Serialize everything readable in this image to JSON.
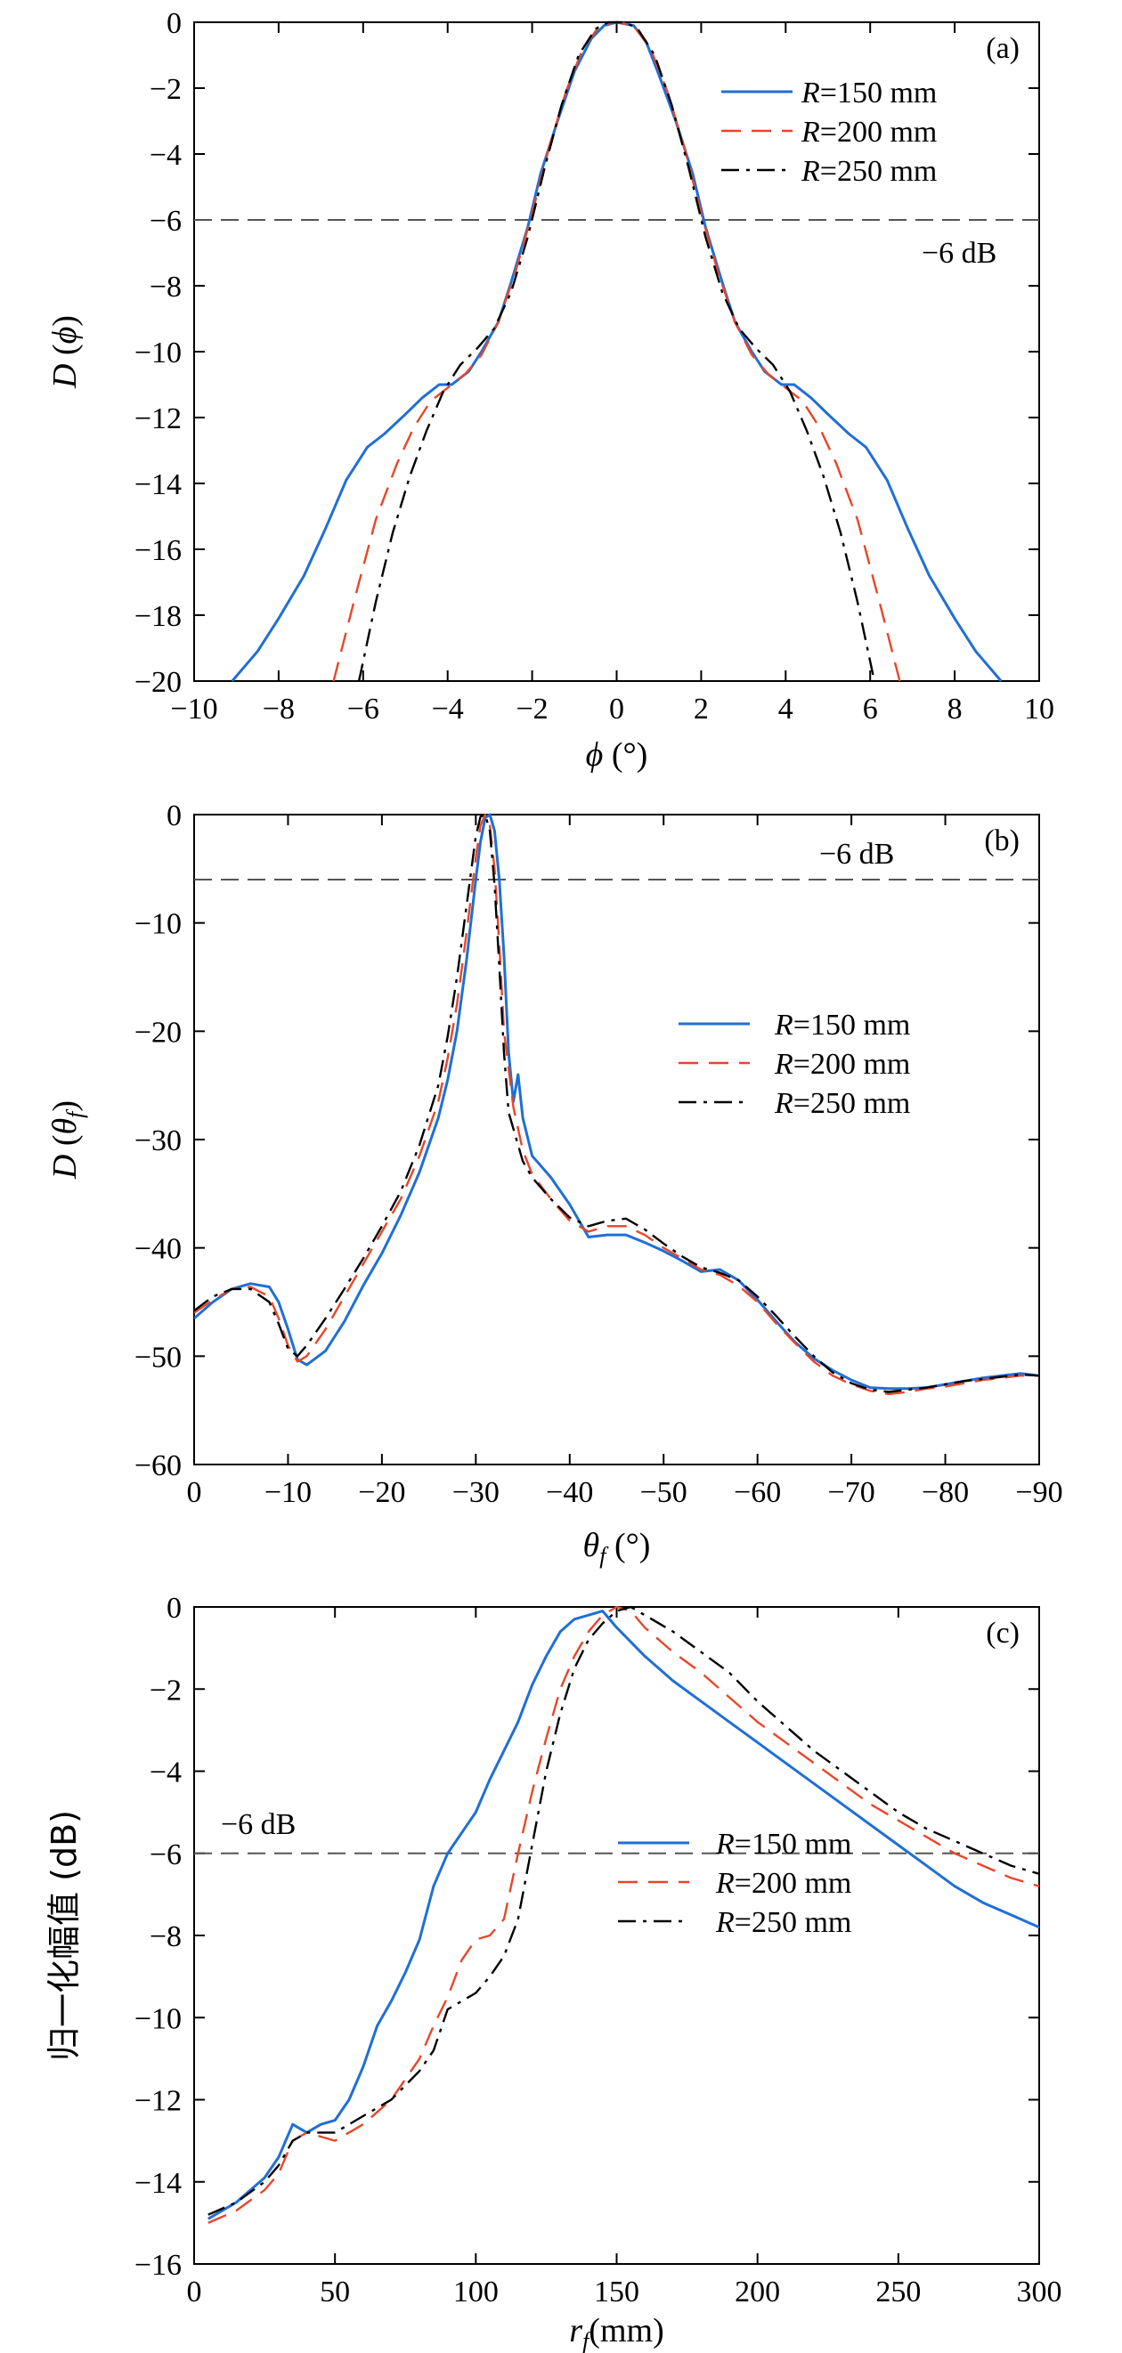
{
  "colors": {
    "r150": "#1f6fd6",
    "r200": "#e8462a",
    "r250": "#000000",
    "ref": "#555555"
  },
  "chart_data": [
    {
      "type": "line",
      "panel_label": "(a)",
      "xlabel": "ϕ (°)",
      "ylabel": "D (ϕ)",
      "xlim": [
        -10,
        10
      ],
      "ylim": [
        -20,
        0
      ],
      "x_reversed": false,
      "xticks": [
        -10,
        -8,
        -6,
        -4,
        -2,
        0,
        2,
        4,
        6,
        8,
        10
      ],
      "xtick_labels": [
        "−10",
        "−8",
        "−6",
        "−4",
        "−2",
        "0",
        "2",
        "4",
        "6",
        "8",
        "10"
      ],
      "yticks": [
        0,
        -2,
        -4,
        -6,
        -8,
        -10,
        -12,
        -14,
        -16,
        -18,
        -20
      ],
      "ytick_labels": [
        "0",
        "−2",
        "−4",
        "−6",
        "−8",
        "−10",
        "−12",
        "−14",
        "−16",
        "−18",
        "−20"
      ],
      "grid": false,
      "legend": "top-right",
      "reference_line": {
        "y": -6,
        "label": "−6 dB"
      },
      "series": [
        {
          "name": "R=150 mm",
          "name_italic": "R",
          "name_rest": "=150 mm",
          "style": "solid",
          "color_key": "r150",
          "x": [
            -9.1,
            -8.5,
            -8.0,
            -7.4,
            -6.9,
            -6.4,
            -5.9,
            -5.5,
            -5.0,
            -4.6,
            -4.2,
            -3.9,
            -3.5,
            -3.2,
            -2.8,
            -2.5,
            -2.1,
            -1.8,
            -1.4,
            -1.0,
            -0.6,
            -0.3,
            0,
            0.4,
            0.7,
            1.0,
            1.4,
            1.8,
            2.1,
            2.5,
            2.8,
            3.2,
            3.5,
            3.9,
            4.2,
            4.6,
            5.0,
            5.5,
            5.9,
            6.4,
            6.9,
            7.4,
            8.0,
            8.5,
            9.1
          ],
          "y": [
            -20.0,
            -19.1,
            -18.1,
            -16.8,
            -15.4,
            -13.9,
            -12.9,
            -12.5,
            -11.9,
            -11.4,
            -11.0,
            -11.0,
            -10.6,
            -10.0,
            -9.1,
            -7.9,
            -6.2,
            -4.6,
            -3.0,
            -1.5,
            -0.5,
            -0.1,
            0,
            -0.1,
            -0.6,
            -1.6,
            -3.0,
            -4.6,
            -6.2,
            -7.9,
            -9.1,
            -10.0,
            -10.6,
            -11.0,
            -11.0,
            -11.4,
            -11.9,
            -12.5,
            -12.9,
            -13.9,
            -15.4,
            -16.8,
            -18.1,
            -19.1,
            -20.0
          ]
        },
        {
          "name": "R=200 mm",
          "name_italic": "R",
          "name_rest": "=200 mm",
          "style": "dashed",
          "color_key": "r200",
          "x": [
            -6.7,
            -6.2,
            -5.7,
            -5.2,
            -4.8,
            -4.4,
            -4.0,
            -3.6,
            -3.2,
            -2.8,
            -2.4,
            -2.0,
            -1.6,
            -1.2,
            -0.8,
            -0.4,
            0,
            0.4,
            0.8,
            1.2,
            1.6,
            2.0,
            2.4,
            2.8,
            3.2,
            3.6,
            4.0,
            4.4,
            4.8,
            5.2,
            5.7,
            6.2,
            6.7
          ],
          "y": [
            -20.0,
            -17.5,
            -15.1,
            -13.4,
            -12.3,
            -11.5,
            -11.1,
            -10.7,
            -10.1,
            -9.1,
            -7.6,
            -5.8,
            -3.8,
            -2.1,
            -0.8,
            -0.1,
            0,
            -0.1,
            -0.8,
            -2.1,
            -3.8,
            -5.8,
            -7.6,
            -9.1,
            -10.1,
            -10.7,
            -11.1,
            -11.5,
            -12.3,
            -13.4,
            -15.1,
            -17.5,
            -20.0
          ]
        },
        {
          "name": "R=250 mm",
          "name_italic": "R",
          "name_rest": "=250 mm",
          "style": "dashdot",
          "color_key": "r250",
          "x": [
            -6.1,
            -5.7,
            -5.3,
            -4.9,
            -4.5,
            -4.1,
            -3.7,
            -3.3,
            -2.9,
            -2.5,
            -2.1,
            -1.7,
            -1.3,
            -0.9,
            -0.5,
            -0.2,
            0,
            0.2,
            0.5,
            0.9,
            1.3,
            1.7,
            2.1,
            2.5,
            2.9,
            3.3,
            3.7,
            4.1,
            4.5,
            4.9,
            5.3,
            5.7,
            6.1
          ],
          "y": [
            -20.0,
            -17.6,
            -15.5,
            -13.8,
            -12.4,
            -11.2,
            -10.4,
            -9.9,
            -9.3,
            -8.2,
            -6.5,
            -4.4,
            -2.5,
            -1.0,
            -0.2,
            0,
            0,
            0,
            -0.2,
            -1.0,
            -2.5,
            -4.4,
            -6.5,
            -8.2,
            -9.3,
            -9.9,
            -10.4,
            -11.2,
            -12.4,
            -13.8,
            -15.5,
            -17.6,
            -20.0
          ]
        }
      ]
    },
    {
      "type": "line",
      "panel_label": "(b)",
      "xlabel": "θf (°)",
      "ylabel": "D (θf)",
      "xlim": [
        0,
        -90
      ],
      "ylim": [
        -60,
        0
      ],
      "x_reversed": true,
      "xticks": [
        0,
        -10,
        -20,
        -30,
        -40,
        -50,
        -60,
        -70,
        -80,
        -90
      ],
      "xtick_labels": [
        "0",
        "−10",
        "−20",
        "−30",
        "−40",
        "−50",
        "−60",
        "−70",
        "−80",
        "−90"
      ],
      "yticks": [
        0,
        -10,
        -20,
        -30,
        -40,
        -50,
        -60
      ],
      "ytick_labels": [
        "0",
        "−10",
        "−20",
        "−30",
        "−40",
        "−50",
        "−60"
      ],
      "grid": false,
      "legend": "center-right",
      "reference_line": {
        "y": -6,
        "label": "−6 dB"
      },
      "series": [
        {
          "name": "R=150 mm",
          "name_italic": "R",
          "name_rest": "=150 mm",
          "style": "solid",
          "color_key": "r150",
          "x": [
            0,
            -2,
            -4,
            -6,
            -8,
            -9,
            -10,
            -11,
            -12,
            -14,
            -16,
            -18,
            -20,
            -22,
            -24,
            -26,
            -27,
            -28,
            -29,
            -30,
            -30.5,
            -31,
            -31.5,
            -32,
            -32.5,
            -33,
            -33.5,
            -34,
            -34.5,
            -35,
            -36,
            -38,
            -40,
            -42,
            -44,
            -46,
            -48,
            -50,
            -52,
            -54,
            -56,
            -58,
            -60,
            -62,
            -64,
            -66,
            -68,
            -70,
            -72,
            -74,
            -76,
            -78,
            -80,
            -82,
            -84,
            -86,
            -88,
            -90
          ],
          "y": [
            -46.5,
            -45.0,
            -43.8,
            -43.3,
            -43.6,
            -45.0,
            -47.5,
            -50.3,
            -50.8,
            -49.5,
            -46.8,
            -43.5,
            -40.5,
            -37.0,
            -33.0,
            -28.0,
            -24.5,
            -20.0,
            -13.5,
            -6.0,
            -2.5,
            -0.3,
            0,
            -1.5,
            -6.0,
            -13.0,
            -22.0,
            -26.5,
            -24.0,
            -28.0,
            -31.5,
            -33.5,
            -36.0,
            -39.0,
            -38.8,
            -38.8,
            -39.5,
            -40.3,
            -41.2,
            -42.2,
            -42.0,
            -43.0,
            -44.8,
            -46.8,
            -48.7,
            -50.2,
            -51.3,
            -52.2,
            -52.9,
            -53.0,
            -53.0,
            -52.9,
            -52.6,
            -52.3,
            -52.0,
            -51.8,
            -51.6,
            -51.8
          ]
        },
        {
          "name": "R=200 mm",
          "name_italic": "R",
          "name_rest": "=200 mm",
          "style": "dashed",
          "color_key": "r200",
          "x": [
            0,
            -2,
            -4,
            -6,
            -8,
            -9,
            -10,
            -11,
            -12,
            -14,
            -16,
            -18,
            -20,
            -22,
            -24,
            -26,
            -27,
            -28,
            -29,
            -30,
            -30.5,
            -31,
            -31.5,
            -32,
            -32.5,
            -33,
            -34,
            -35,
            -36,
            -38,
            -40,
            -42,
            -44,
            -46,
            -48,
            -50,
            -52,
            -54,
            -56,
            -58,
            -60,
            -62,
            -64,
            -66,
            -68,
            -70,
            -72,
            -74,
            -76,
            -78,
            -80,
            -82,
            -84,
            -86,
            -88,
            -90
          ],
          "y": [
            -46.0,
            -44.8,
            -43.8,
            -43.6,
            -44.5,
            -46.5,
            -49.0,
            -50.5,
            -50.0,
            -47.5,
            -44.5,
            -41.5,
            -38.5,
            -35.5,
            -31.5,
            -26.5,
            -22.5,
            -17.5,
            -11.0,
            -4.0,
            -1.0,
            0,
            -1.0,
            -5.0,
            -12.0,
            -20.0,
            -27.0,
            -31.0,
            -33.2,
            -35.5,
            -37.5,
            -38.5,
            -38.0,
            -38.0,
            -38.8,
            -40.0,
            -41.0,
            -42.0,
            -42.5,
            -43.5,
            -45.0,
            -47.0,
            -48.8,
            -50.5,
            -51.8,
            -52.6,
            -53.2,
            -53.5,
            -53.3,
            -53.0,
            -52.8,
            -52.5,
            -52.2,
            -52.0,
            -51.8,
            -51.8
          ]
        },
        {
          "name": "R=250 mm",
          "name_italic": "R",
          "name_rest": "=250 mm",
          "style": "dashdot",
          "color_key": "r250",
          "x": [
            0,
            -2,
            -4,
            -6,
            -8,
            -9,
            -10,
            -11,
            -12,
            -14,
            -16,
            -18,
            -20,
            -22,
            -24,
            -26,
            -27,
            -28,
            -29,
            -30,
            -30.5,
            -31,
            -31.5,
            -32,
            -32.5,
            -33,
            -33.5,
            -34,
            -35,
            -36,
            -38,
            -40,
            -42,
            -44,
            -46,
            -48,
            -50,
            -52,
            -54,
            -56,
            -58,
            -60,
            -62,
            -64,
            -66,
            -68,
            -70,
            -72,
            -74,
            -76,
            -78,
            -80,
            -82,
            -84,
            -86,
            -88,
            -90
          ],
          "y": [
            -45.8,
            -44.5,
            -43.8,
            -43.8,
            -45.0,
            -47.0,
            -49.3,
            -50.0,
            -49.0,
            -46.5,
            -43.8,
            -41.0,
            -38.0,
            -34.8,
            -30.5,
            -25.0,
            -20.5,
            -15.0,
            -8.5,
            -2.0,
            -0.2,
            0,
            -1.5,
            -6.5,
            -14.0,
            -22.0,
            -27.5,
            -29.0,
            -32.0,
            -33.5,
            -35.5,
            -37.2,
            -38.0,
            -37.5,
            -37.3,
            -38.3,
            -39.6,
            -40.8,
            -41.8,
            -42.3,
            -43.0,
            -44.5,
            -46.3,
            -48.2,
            -50.0,
            -51.5,
            -52.5,
            -53.1,
            -53.3,
            -53.1,
            -52.9,
            -52.6,
            -52.3,
            -52.1,
            -51.9,
            -51.7,
            -51.8
          ]
        }
      ]
    },
    {
      "type": "line",
      "panel_label": "(c)",
      "xlabel": "rf (mm)",
      "ylabel": "归一化幅值 (dB)",
      "xlim": [
        0,
        300
      ],
      "ylim": [
        -16,
        0
      ],
      "x_reversed": false,
      "xticks": [
        0,
        50,
        100,
        150,
        200,
        250,
        300
      ],
      "xtick_labels": [
        "0",
        "50",
        "100",
        "150",
        "200",
        "250",
        "300"
      ],
      "yticks": [
        0,
        -2,
        -4,
        -6,
        -8,
        -10,
        -12,
        -14,
        -16
      ],
      "ytick_labels": [
        "0",
        "−2",
        "−4",
        "−6",
        "−8",
        "−10",
        "−12",
        "−14",
        "−16"
      ],
      "grid": false,
      "legend": "center-right",
      "reference_line": {
        "y": -6,
        "label": "−6 dB"
      },
      "series": [
        {
          "name": "R=150 mm",
          "name_italic": "R",
          "name_rest": "=150 mm",
          "style": "solid",
          "color_key": "r150",
          "x": [
            5,
            15,
            25,
            30,
            35,
            40,
            45,
            50,
            55,
            60,
            65,
            70,
            75,
            80,
            85,
            90,
            95,
            100,
            105,
            110,
            115,
            120,
            125,
            130,
            135,
            140,
            145,
            150,
            160,
            170,
            180,
            190,
            200,
            210,
            220,
            230,
            240,
            250,
            260,
            270,
            280,
            290,
            300
          ],
          "y": [
            -14.9,
            -14.5,
            -13.9,
            -13.4,
            -12.6,
            -12.8,
            -12.6,
            -12.5,
            -12.0,
            -11.2,
            -10.2,
            -9.6,
            -8.9,
            -8.1,
            -6.8,
            -6.0,
            -5.5,
            -5.0,
            -4.2,
            -3.5,
            -2.8,
            -1.9,
            -1.2,
            -0.6,
            -0.3,
            -0.2,
            -0.1,
            -0.5,
            -1.2,
            -1.8,
            -2.3,
            -2.8,
            -3.3,
            -3.8,
            -4.3,
            -4.8,
            -5.3,
            -5.8,
            -6.3,
            -6.8,
            -7.2,
            -7.5,
            -7.8
          ]
        },
        {
          "name": "R=200 mm",
          "name_italic": "R",
          "name_rest": "=200 mm",
          "style": "dashed",
          "color_key": "r200",
          "x": [
            5,
            15,
            25,
            30,
            35,
            40,
            45,
            50,
            60,
            70,
            80,
            85,
            90,
            95,
            100,
            105,
            110,
            115,
            120,
            125,
            130,
            135,
            140,
            145,
            150,
            155,
            160,
            170,
            180,
            190,
            200,
            210,
            220,
            230,
            240,
            250,
            260,
            270,
            280,
            290,
            300
          ],
          "y": [
            -15.0,
            -14.7,
            -14.2,
            -13.8,
            -13.0,
            -12.8,
            -12.9,
            -13.0,
            -12.6,
            -12.0,
            -11.0,
            -10.2,
            -9.5,
            -8.6,
            -8.1,
            -8.0,
            -7.6,
            -6.0,
            -4.5,
            -3.2,
            -2.0,
            -1.2,
            -0.6,
            -0.2,
            0,
            -0.1,
            -0.5,
            -1.1,
            -1.6,
            -2.2,
            -2.8,
            -3.3,
            -3.8,
            -4.3,
            -4.8,
            -5.2,
            -5.6,
            -6.0,
            -6.3,
            -6.6,
            -6.8
          ]
        },
        {
          "name": "R=250 mm",
          "name_italic": "R",
          "name_rest": "=250 mm",
          "style": "dashdot",
          "color_key": "r250",
          "x": [
            5,
            15,
            25,
            30,
            35,
            40,
            45,
            50,
            60,
            70,
            80,
            85,
            90,
            95,
            100,
            105,
            110,
            115,
            120,
            125,
            130,
            135,
            140,
            145,
            150,
            155,
            160,
            170,
            180,
            190,
            200,
            210,
            220,
            230,
            240,
            250,
            260,
            270,
            280,
            290,
            300
          ],
          "y": [
            -14.8,
            -14.5,
            -14.0,
            -13.6,
            -13.0,
            -12.8,
            -12.8,
            -12.8,
            -12.4,
            -12.0,
            -11.3,
            -10.8,
            -9.8,
            -9.6,
            -9.4,
            -9.0,
            -8.5,
            -7.6,
            -5.8,
            -4.0,
            -2.6,
            -1.5,
            -0.8,
            -0.4,
            -0.1,
            0,
            -0.2,
            -0.6,
            -1.1,
            -1.6,
            -2.3,
            -2.9,
            -3.5,
            -4.0,
            -4.5,
            -5.0,
            -5.4,
            -5.7,
            -6.0,
            -6.3,
            -6.5
          ]
        }
      ]
    }
  ]
}
